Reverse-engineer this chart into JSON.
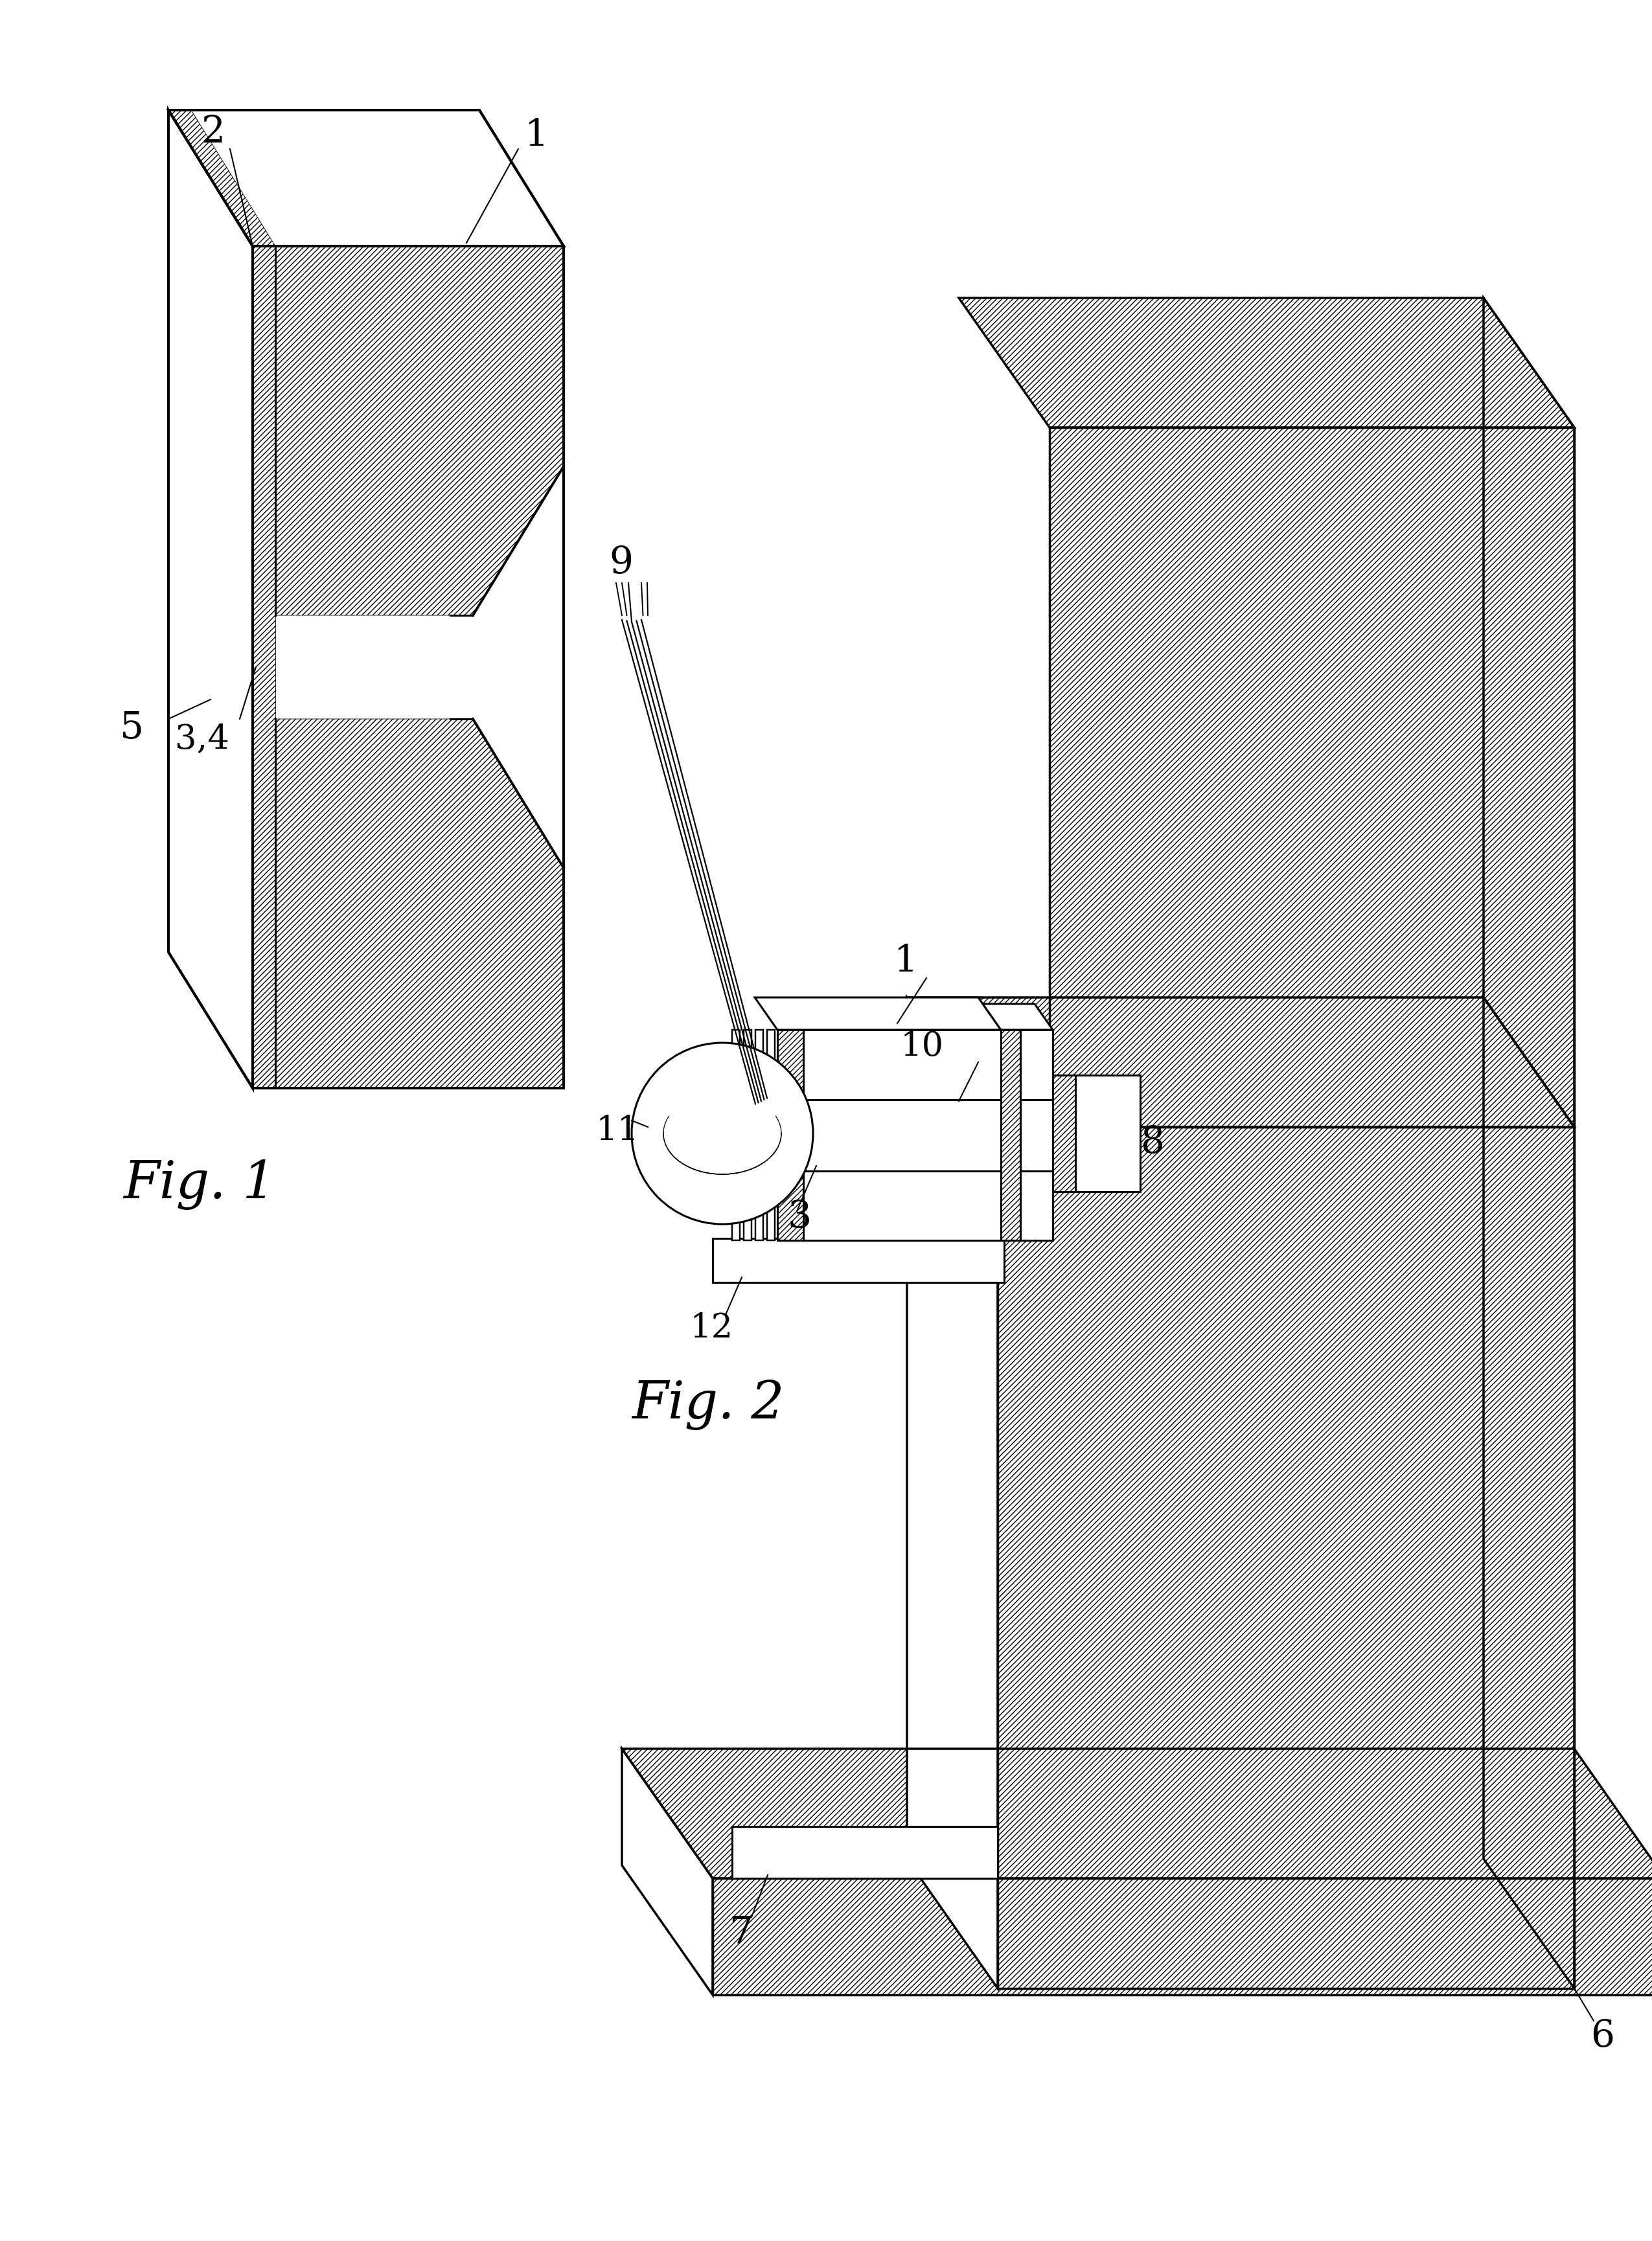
{
  "fig_width": 25.5,
  "fig_height": 34.6,
  "bg_color": "#ffffff",
  "line_color": "#000000",
  "fig1_label": "Fig. 1",
  "fig2_label": "Fig. 2"
}
